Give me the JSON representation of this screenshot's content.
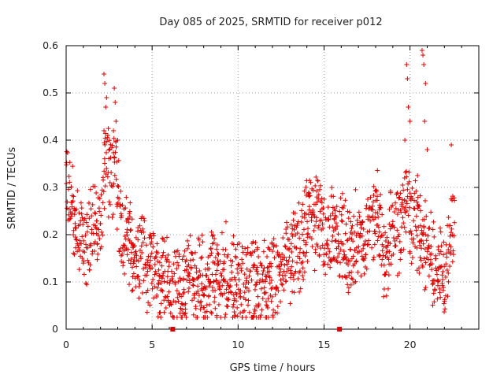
{
  "chart_data": {
    "type": "scatter",
    "title": "Day 085 of 2025, SRMTID for receiver p012",
    "xlabel": "GPS time / hours",
    "ylabel": "SRMTID / TECUs",
    "xlim": [
      0,
      24
    ],
    "ylim": [
      0,
      0.6
    ],
    "xticks": [
      0,
      5,
      10,
      15,
      20
    ],
    "yticks": [
      0,
      0.1,
      0.2,
      0.3,
      0.4,
      0.5,
      0.6
    ],
    "grid": true,
    "marker_color": "#e00000",
    "axis_markers_x": [
      6.2,
      15.9
    ],
    "series": [
      {
        "name": "SRMTID",
        "envelope": [
          [
            0.0,
            0.29
          ],
          [
            0.5,
            0.24
          ],
          [
            1.0,
            0.16
          ],
          [
            1.5,
            0.22
          ],
          [
            2.0,
            0.25
          ],
          [
            2.3,
            0.34
          ],
          [
            2.8,
            0.33
          ],
          [
            3.3,
            0.21
          ],
          [
            4.0,
            0.16
          ],
          [
            4.8,
            0.14
          ],
          [
            5.5,
            0.12
          ],
          [
            6.2,
            0.08
          ],
          [
            7.0,
            0.1
          ],
          [
            8.0,
            0.09
          ],
          [
            9.0,
            0.11
          ],
          [
            10.0,
            0.09
          ],
          [
            11.0,
            0.1
          ],
          [
            12.0,
            0.11
          ],
          [
            12.8,
            0.14
          ],
          [
            13.5,
            0.17
          ],
          [
            14.0,
            0.22
          ],
          [
            14.5,
            0.24
          ],
          [
            15.0,
            0.22
          ],
          [
            15.5,
            0.19
          ],
          [
            16.0,
            0.2
          ],
          [
            16.5,
            0.17
          ],
          [
            17.0,
            0.18
          ],
          [
            17.5,
            0.21
          ],
          [
            18.0,
            0.24
          ],
          [
            18.5,
            0.17
          ],
          [
            19.0,
            0.2
          ],
          [
            19.5,
            0.24
          ],
          [
            20.0,
            0.26
          ],
          [
            20.5,
            0.21
          ],
          [
            21.0,
            0.18
          ],
          [
            21.5,
            0.14
          ],
          [
            22.0,
            0.13
          ],
          [
            22.6,
            0.22
          ]
        ],
        "peaks": [
          [
            2.2,
            0.54
          ],
          [
            2.25,
            0.52
          ],
          [
            2.35,
            0.49
          ],
          [
            2.3,
            0.47
          ],
          [
            2.8,
            0.51
          ],
          [
            2.85,
            0.48
          ],
          [
            2.9,
            0.44
          ],
          [
            2.75,
            0.42
          ],
          [
            2.2,
            0.42
          ],
          [
            3.0,
            0.4
          ],
          [
            19.8,
            0.56
          ],
          [
            19.85,
            0.53
          ],
          [
            19.9,
            0.47
          ],
          [
            20.0,
            0.44
          ],
          [
            20.7,
            0.59
          ],
          [
            20.75,
            0.58
          ],
          [
            20.8,
            0.56
          ],
          [
            20.9,
            0.52
          ],
          [
            20.85,
            0.44
          ],
          [
            19.7,
            0.4
          ],
          [
            21.0,
            0.38
          ],
          [
            22.4,
            0.39
          ]
        ]
      }
    ]
  }
}
